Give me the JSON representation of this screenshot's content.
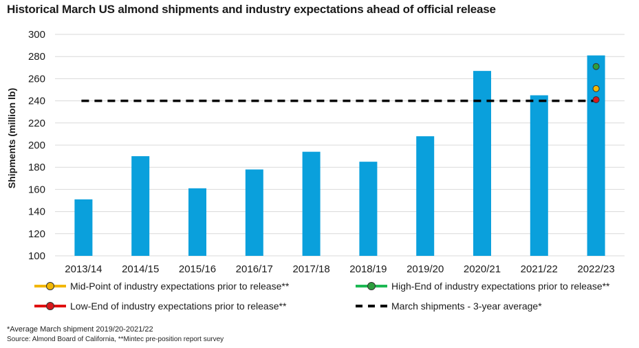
{
  "title": "Historical March US almond shipments and industry expectations ahead of official release",
  "chart_data": {
    "type": "bar",
    "categories": [
      "2013/14",
      "2014/15",
      "2015/16",
      "2016/17",
      "2017/18",
      "2018/19",
      "2019/20",
      "2020/21",
      "2021/22",
      "2022/23"
    ],
    "series": [
      {
        "name": "",
        "values": [
          151,
          190,
          161,
          178,
          194,
          185,
          208,
          267,
          245,
          281
        ],
        "color": "#0aa0dc"
      }
    ],
    "reference_line": {
      "name": "March shipments - 3-year average*",
      "value": 240,
      "style": "dashed",
      "color": "#000000"
    },
    "markers": [
      {
        "name": "High-End of industry expectations prior to release**",
        "category": "2022/23",
        "value": 271,
        "color": "#2e9e3e"
      },
      {
        "name": "Mid-Point of industry expectations prior to release**",
        "category": "2022/23",
        "value": 251,
        "color": "#f2b705"
      },
      {
        "name": "Low-End of industry expectations prior to release**",
        "category": "2022/23",
        "value": 241,
        "color": "#d7191c"
      }
    ],
    "ylabel": "Shipments (million lb)",
    "xlabel": "",
    "ylim": [
      100,
      300
    ],
    "yticks": [
      100,
      120,
      140,
      160,
      180,
      200,
      220,
      240,
      260,
      280,
      300
    ],
    "grid": true,
    "legend_position": "bottom"
  },
  "legend": {
    "mid": "Mid-Point of industry expectations prior to release**",
    "high": "High-End of industry expectations prior to release**",
    "low": "Low-End of industry expectations prior to release**",
    "avg": "March shipments - 3-year average*",
    "colors": {
      "mid_line": "#f2b705",
      "high_line": "#1db954",
      "low_line": "#e01010"
    }
  },
  "footnotes": {
    "line1": "*Average March shipment 2019/20-2021/22",
    "line2": "Source: Almond Board of California, **Mintec pre-position report survey"
  }
}
